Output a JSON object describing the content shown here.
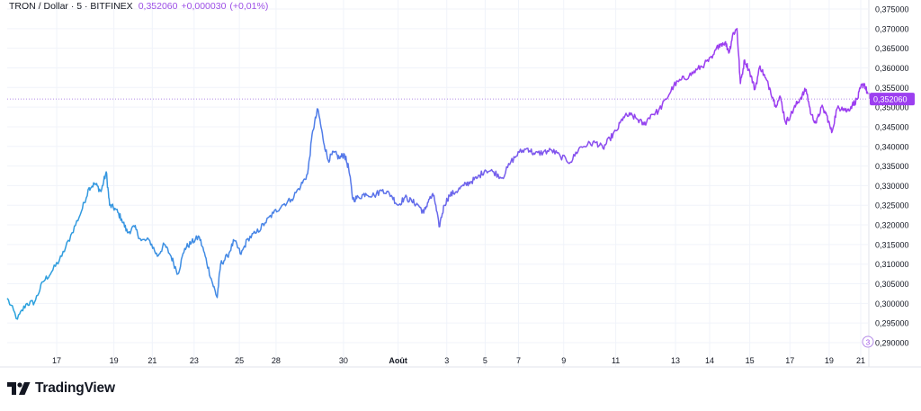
{
  "header": {
    "symbol": "TRON / Dollar · 5 · BITFINEX",
    "last": "0,352060",
    "change": "+0,000030",
    "change_pct": "(+0,01%)"
  },
  "price_label": "0,352060",
  "logo": {
    "text": "TradingView"
  },
  "colors": {
    "start": "#29a3dc",
    "mid": "#4d7ee8",
    "end": "#9c3ff0",
    "grid": "#f0f3fa"
  },
  "chart_data": {
    "type": "line",
    "y_ticks": [
      "0,375000",
      "0,370000",
      "0,365000",
      "0,360000",
      "0,355000",
      "0,350000",
      "0,345000",
      "0,340000",
      "0,335000",
      "0,330000",
      "0,325000",
      "0,320000",
      "0,315000",
      "0,310000",
      "0,305000",
      "0,300000",
      "0,295000",
      "0,290000"
    ],
    "ylim": [
      0.2875,
      0.377
    ],
    "x_ticks": [
      {
        "t": 0.058,
        "label": "17"
      },
      {
        "t": 0.125,
        "label": "19"
      },
      {
        "t": 0.17,
        "label": "21"
      },
      {
        "t": 0.219,
        "label": "23"
      },
      {
        "t": 0.272,
        "label": "25"
      },
      {
        "t": 0.315,
        "label": "28"
      },
      {
        "t": 0.394,
        "label": "30"
      },
      {
        "t": 0.458,
        "label": "Août"
      },
      {
        "t": 0.515,
        "label": "3"
      },
      {
        "t": 0.56,
        "label": "5"
      },
      {
        "t": 0.599,
        "label": "7"
      },
      {
        "t": 0.652,
        "label": "9"
      },
      {
        "t": 0.713,
        "label": "11"
      },
      {
        "t": 0.783,
        "label": "13"
      },
      {
        "t": 0.823,
        "label": "14"
      },
      {
        "t": 0.87,
        "label": "15"
      },
      {
        "t": 0.917,
        "label": "17"
      },
      {
        "t": 0.963,
        "label": "19"
      },
      {
        "t": 1.0,
        "label": "21"
      }
    ],
    "last_price": 0.35206,
    "series": [
      {
        "points": [
          [
            0.0,
            0.3013
          ],
          [
            0.012,
            0.296
          ],
          [
            0.022,
            0.2998
          ],
          [
            0.032,
            0.3003
          ],
          [
            0.042,
            0.3055
          ],
          [
            0.052,
            0.308
          ],
          [
            0.064,
            0.312
          ],
          [
            0.076,
            0.318
          ],
          [
            0.087,
            0.3235
          ],
          [
            0.096,
            0.3295
          ],
          [
            0.103,
            0.3305
          ],
          [
            0.11,
            0.3285
          ],
          [
            0.116,
            0.3335
          ],
          [
            0.12,
            0.325
          ],
          [
            0.127,
            0.324
          ],
          [
            0.134,
            0.3215
          ],
          [
            0.141,
            0.318
          ],
          [
            0.149,
            0.3195
          ],
          [
            0.157,
            0.316
          ],
          [
            0.167,
            0.316
          ],
          [
            0.176,
            0.312
          ],
          [
            0.184,
            0.315
          ],
          [
            0.192,
            0.312
          ],
          [
            0.2,
            0.3075
          ],
          [
            0.208,
            0.314
          ],
          [
            0.216,
            0.3155
          ],
          [
            0.225,
            0.317
          ],
          [
            0.232,
            0.312
          ],
          [
            0.24,
            0.3055
          ],
          [
            0.246,
            0.3015
          ],
          [
            0.25,
            0.31
          ],
          [
            0.258,
            0.312
          ],
          [
            0.266,
            0.316
          ],
          [
            0.274,
            0.3125
          ],
          [
            0.282,
            0.3165
          ],
          [
            0.292,
            0.318
          ],
          [
            0.302,
            0.3205
          ],
          [
            0.312,
            0.323
          ],
          [
            0.322,
            0.325
          ],
          [
            0.333,
            0.3265
          ],
          [
            0.344,
            0.33
          ],
          [
            0.352,
            0.333
          ],
          [
            0.358,
            0.344
          ],
          [
            0.364,
            0.3495
          ],
          [
            0.37,
            0.342
          ],
          [
            0.376,
            0.3365
          ],
          [
            0.383,
            0.3385
          ],
          [
            0.389,
            0.337
          ],
          [
            0.395,
            0.338
          ],
          [
            0.4,
            0.3345
          ],
          [
            0.405,
            0.3265
          ],
          [
            0.412,
            0.327
          ],
          [
            0.42,
            0.328
          ],
          [
            0.43,
            0.3275
          ],
          [
            0.44,
            0.329
          ],
          [
            0.45,
            0.3275
          ],
          [
            0.458,
            0.325
          ],
          [
            0.466,
            0.327
          ],
          [
            0.474,
            0.326
          ],
          [
            0.482,
            0.325
          ],
          [
            0.488,
            0.323
          ],
          [
            0.494,
            0.3265
          ],
          [
            0.5,
            0.3275
          ],
          [
            0.506,
            0.3195
          ],
          [
            0.512,
            0.325
          ],
          [
            0.518,
            0.3275
          ],
          [
            0.526,
            0.3285
          ],
          [
            0.535,
            0.33
          ],
          [
            0.543,
            0.331
          ],
          [
            0.551,
            0.332
          ],
          [
            0.56,
            0.334
          ],
          [
            0.57,
            0.3335
          ],
          [
            0.58,
            0.332
          ],
          [
            0.59,
            0.336
          ],
          [
            0.6,
            0.3385
          ],
          [
            0.61,
            0.3395
          ],
          [
            0.618,
            0.338
          ],
          [
            0.628,
            0.3385
          ],
          [
            0.638,
            0.339
          ],
          [
            0.648,
            0.3375
          ],
          [
            0.66,
            0.336
          ],
          [
            0.67,
            0.3395
          ],
          [
            0.68,
            0.3405
          ],
          [
            0.69,
            0.341
          ],
          [
            0.698,
            0.3395
          ],
          [
            0.706,
            0.342
          ],
          [
            0.714,
            0.344
          ],
          [
            0.722,
            0.3475
          ],
          [
            0.73,
            0.348
          ],
          [
            0.738,
            0.347
          ],
          [
            0.746,
            0.3455
          ],
          [
            0.754,
            0.348
          ],
          [
            0.763,
            0.349
          ],
          [
            0.772,
            0.352
          ],
          [
            0.781,
            0.3555
          ],
          [
            0.79,
            0.357
          ],
          [
            0.799,
            0.358
          ],
          [
            0.808,
            0.3595
          ],
          [
            0.817,
            0.361
          ],
          [
            0.826,
            0.3625
          ],
          [
            0.834,
            0.366
          ],
          [
            0.841,
            0.3665
          ],
          [
            0.846,
            0.364
          ],
          [
            0.85,
            0.3685
          ],
          [
            0.855,
            0.37
          ],
          [
            0.859,
            0.356
          ],
          [
            0.864,
            0.362
          ],
          [
            0.87,
            0.359
          ],
          [
            0.876,
            0.3545
          ],
          [
            0.882,
            0.3605
          ],
          [
            0.888,
            0.3575
          ],
          [
            0.894,
            0.3545
          ],
          [
            0.9,
            0.3505
          ],
          [
            0.906,
            0.3525
          ],
          [
            0.912,
            0.346
          ],
          [
            0.918,
            0.348
          ],
          [
            0.924,
            0.3505
          ],
          [
            0.93,
            0.3525
          ],
          [
            0.936,
            0.3545
          ],
          [
            0.942,
            0.348
          ],
          [
            0.948,
            0.346
          ],
          [
            0.954,
            0.35
          ],
          [
            0.96,
            0.348
          ],
          [
            0.966,
            0.3435
          ],
          [
            0.972,
            0.3495
          ],
          [
            0.978,
            0.35
          ],
          [
            0.984,
            0.349
          ],
          [
            0.99,
            0.3505
          ],
          [
            0.996,
            0.352
          ],
          [
            1.0,
            0.355
          ],
          [
            1.004,
            0.356
          ],
          [
            1.008,
            0.3535
          ],
          [
            1.012,
            0.352
          ]
        ]
      }
    ]
  }
}
